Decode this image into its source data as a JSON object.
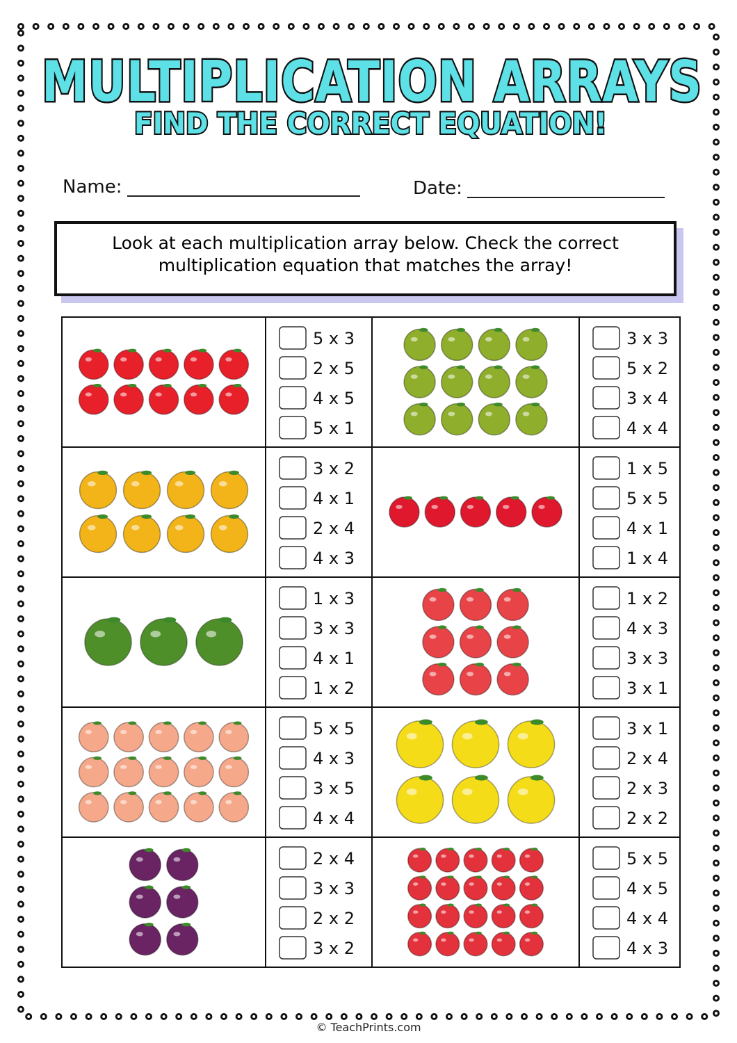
{
  "header": {
    "title": "MULTIPLICATION ARRAYS",
    "subtitle": "FIND THE CORRECT EQUATION!"
  },
  "fields": {
    "name": "Name:",
    "date": "Date:"
  },
  "instructions": [
    "Look at each multiplication array below. Check the correct",
    "multiplication equation that matches the array!"
  ],
  "problems": [
    {
      "rows": 2,
      "cols": 5,
      "color": "#e8202a",
      "options": [
        "5 x 3",
        "2 x 5",
        "4 x 5",
        "5 x 1"
      ]
    },
    {
      "rows": 3,
      "cols": 4,
      "color": "#8fae2c",
      "options": [
        "3 x 3",
        "5 x 2",
        "3 x 4",
        "4 x 4"
      ]
    },
    {
      "rows": 2,
      "cols": 4,
      "color": "#f2b418",
      "options": [
        "3 x 2",
        "4 x 1",
        "2 x 4",
        "4 x 3"
      ]
    },
    {
      "rows": 1,
      "cols": 5,
      "color": "#e0182e",
      "options": [
        "1 x 5",
        "5 x 5",
        "4 x 1",
        "1 x 4"
      ]
    },
    {
      "rows": 1,
      "cols": 3,
      "color": "#4e8f2a",
      "options": [
        "1 x 3",
        "3 x 3",
        "4 x 1",
        "1 x 2"
      ]
    },
    {
      "rows": 3,
      "cols": 3,
      "color": "#e84448",
      "options": [
        "1 x 2",
        "4 x 3",
        "3 x 3",
        "3 x 1"
      ]
    },
    {
      "rows": 3,
      "cols": 5,
      "color": "#f6a98a",
      "options": [
        "5 x 5",
        "4 x 3",
        "3 x 5",
        "4 x 4"
      ]
    },
    {
      "rows": 2,
      "cols": 3,
      "color": "#f5dc18",
      "options": [
        "3 x 1",
        "2 x 4",
        "2 x 3",
        "2 x 2"
      ]
    },
    {
      "rows": 3,
      "cols": 2,
      "color": "#6a2464",
      "options": [
        "2 x 4",
        "3 x 3",
        "2 x 2",
        "3 x 2"
      ]
    },
    {
      "rows": 4,
      "cols": 5,
      "color": "#e4323c",
      "options": [
        "5 x 5",
        "4 x 5",
        "4 x 4",
        "4 x 3"
      ]
    }
  ],
  "footer": "© TeachPrints.com"
}
